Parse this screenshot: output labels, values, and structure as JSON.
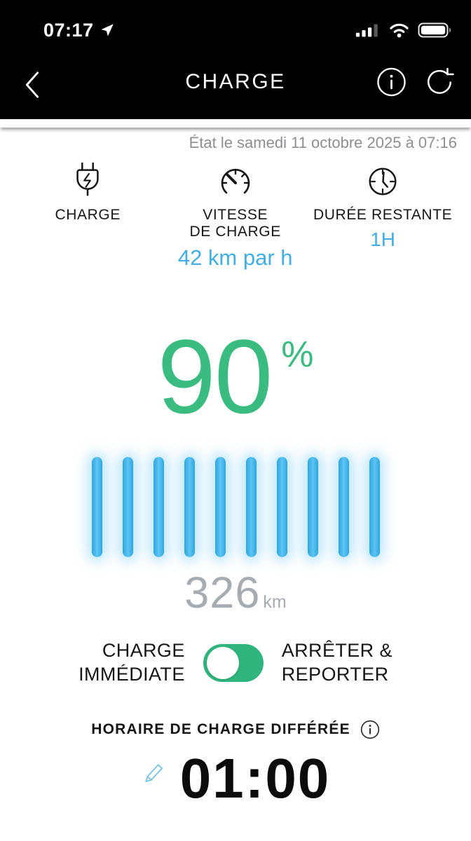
{
  "status_bar": {
    "time": "07:17"
  },
  "nav": {
    "title": "CHARGE"
  },
  "status_line": "État le samedi 11 octobre 2025 à 07:16",
  "metrics": {
    "charge": {
      "label": "CHARGE"
    },
    "speed": {
      "line1": "VITESSE",
      "line2": "DE CHARGE",
      "value": "42 km par h"
    },
    "remaining": {
      "label": "DURÉE RESTANTE",
      "value": "1H"
    }
  },
  "battery": {
    "percent": "90",
    "percent_symbol": "%",
    "bars_count": 10,
    "range_value": "326",
    "range_unit": "km"
  },
  "charge_mode": {
    "left_line1": "CHARGE",
    "left_line2": "IMMÉDIATE",
    "right_line1": "ARRÊTER &",
    "right_line2": "REPORTER",
    "toggle_state": "left"
  },
  "schedule": {
    "label": "HORAIRE DE CHARGE DIFFÉRÉE",
    "time": "01:00"
  },
  "icons": [
    "location-arrow-icon",
    "signal-icon",
    "wifi-icon",
    "battery-icon",
    "back-chevron-icon",
    "info-icon",
    "refresh-icon",
    "plug-icon",
    "speedometer-icon",
    "clock-icon",
    "toggle-switch",
    "schedule-info-icon",
    "edit-pencil-icon"
  ],
  "colors": {
    "header_bg": "#000000",
    "accent_green": "#35b77e",
    "accent_blue": "#41aee4",
    "bar_blue": "#3fb2e8",
    "range_gray": "#a7abb2",
    "date_gray": "#8e8e93"
  }
}
